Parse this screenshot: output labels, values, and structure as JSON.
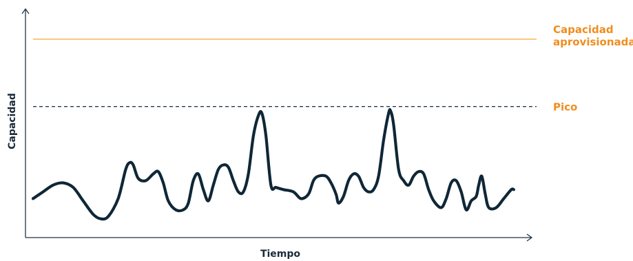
{
  "chart_data": {
    "type": "line",
    "title": "",
    "xlabel": "Tiempo",
    "ylabel": "Capacidad",
    "xlim": [
      0,
      100
    ],
    "ylim": [
      0,
      100
    ],
    "grid": false,
    "legend": "none",
    "reference_lines": [
      {
        "key": "provisioned",
        "label_lines": [
          "Capacidad",
          "aprovisionada"
        ],
        "y": 85,
        "style": "solid",
        "color": "#f6a532",
        "text_color": "#f08d1e"
      },
      {
        "key": "peak",
        "label_lines": [
          "Pico"
        ],
        "y": 55,
        "style": "dashed",
        "color": "#24384a",
        "text_color": "#f08d1e"
      }
    ],
    "series": [
      {
        "color": "#0f2737",
        "points": [
          [
            0,
            14
          ],
          [
            2,
            17
          ],
          [
            4,
            20
          ],
          [
            6,
            21
          ],
          [
            8,
            19
          ],
          [
            10,
            13
          ],
          [
            12,
            7
          ],
          [
            13.5,
            5
          ],
          [
            15,
            6
          ],
          [
            17,
            14
          ],
          [
            18.5,
            27
          ],
          [
            19.3,
            30
          ],
          [
            20,
            29
          ],
          [
            21,
            23
          ],
          [
            22.5,
            22
          ],
          [
            24,
            25
          ],
          [
            25,
            26
          ],
          [
            26,
            21
          ],
          [
            27,
            13
          ],
          [
            28.5,
            9
          ],
          [
            30,
            9
          ],
          [
            31,
            12
          ],
          [
            32,
            22
          ],
          [
            33,
            25
          ],
          [
            34,
            18
          ],
          [
            35,
            13
          ],
          [
            36,
            20
          ],
          [
            37,
            27
          ],
          [
            38,
            29
          ],
          [
            39,
            28
          ],
          [
            40,
            22
          ],
          [
            41,
            17
          ],
          [
            42,
            17
          ],
          [
            43,
            25
          ],
          [
            44,
            42
          ],
          [
            45,
            51
          ],
          [
            45.7,
            52
          ],
          [
            46.5,
            42
          ],
          [
            47.5,
            20
          ],
          [
            48.5,
            19
          ],
          [
            50,
            18
          ],
          [
            52,
            17
          ],
          [
            53.5,
            14
          ],
          [
            55,
            16
          ],
          [
            56,
            22
          ],
          [
            57,
            24
          ],
          [
            58.5,
            24
          ],
          [
            59.5,
            21
          ],
          [
            60.5,
            16
          ],
          [
            61,
            12
          ],
          [
            62,
            15
          ],
          [
            63,
            22
          ],
          [
            64,
            25
          ],
          [
            65,
            24
          ],
          [
            66,
            19
          ],
          [
            67,
            17
          ],
          [
            68,
            18
          ],
          [
            69,
            24
          ],
          [
            70,
            40
          ],
          [
            71,
            52
          ],
          [
            71.4,
            53
          ],
          [
            72,
            47
          ],
          [
            73,
            27
          ],
          [
            74,
            22
          ],
          [
            75,
            20
          ],
          [
            76,
            24
          ],
          [
            77,
            26
          ],
          [
            78,
            25
          ],
          [
            79,
            18
          ],
          [
            80,
            13
          ],
          [
            81.5,
            10
          ],
          [
            82.5,
            14
          ],
          [
            83.5,
            21
          ],
          [
            84.5,
            22
          ],
          [
            85.5,
            17
          ],
          [
            86.5,
            9
          ],
          [
            87.5,
            13
          ],
          [
            88.5,
            15
          ],
          [
            89,
            20
          ],
          [
            89.6,
            24
          ],
          [
            90.3,
            16
          ],
          [
            91,
            10
          ],
          [
            92.5,
            10
          ],
          [
            94,
            14
          ],
          [
            95.5,
            18
          ],
          [
            96,
            18
          ]
        ]
      }
    ]
  }
}
